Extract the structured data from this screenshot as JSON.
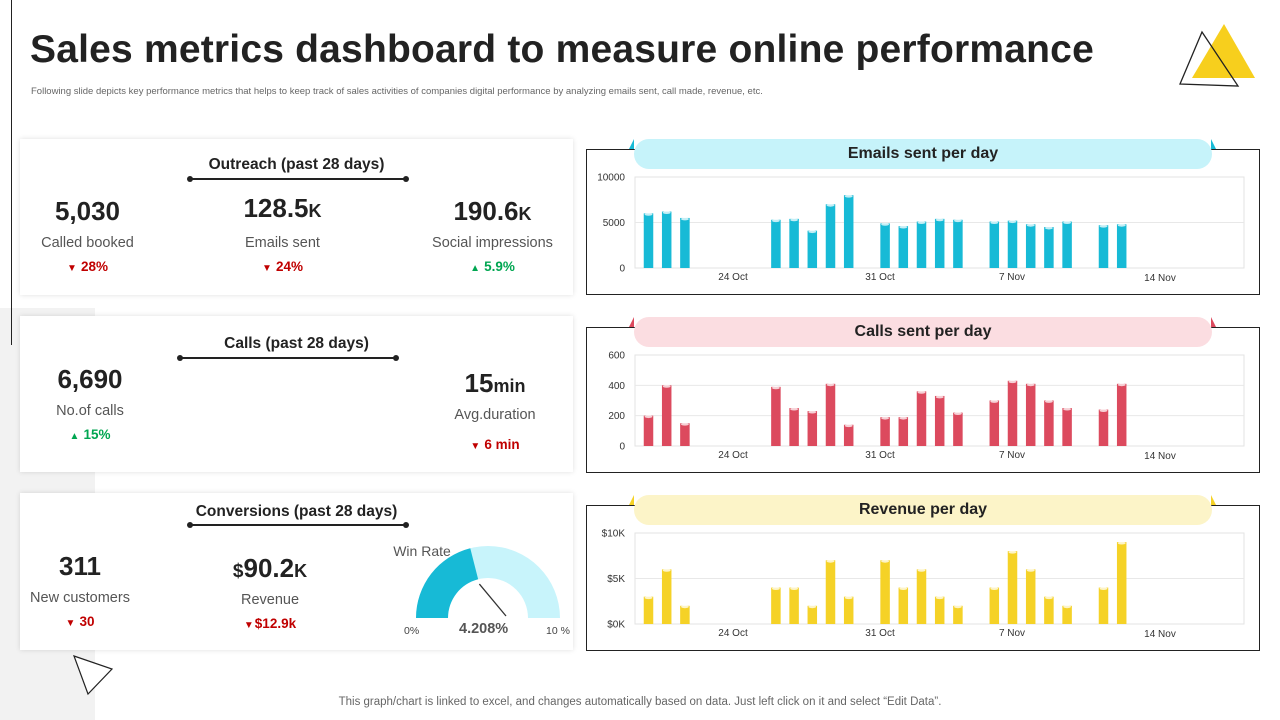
{
  "header": {
    "title": "Sales metrics dashboard to measure online performance",
    "subtitle": "Following slide depicts key performance metrics that helps to keep track of sales activities of companies digital performance by analyzing emails sent, call made, revenue, etc."
  },
  "footer": {
    "note": "This graph/chart is linked to excel, and changes automatically based on data. Just left click on it and select “Edit Data”."
  },
  "colors": {
    "emails": "#17bad6",
    "calls": "#dc4a5e",
    "revenue": "#f5d227",
    "accent_yellow": "#f7cf1d",
    "down": "#c00000",
    "up": "#00a651"
  },
  "outreach": {
    "title": "Outreach (past 28 days)",
    "called_booked": {
      "value": "5,030",
      "unit": "",
      "label": "Called booked",
      "arrow": "▼",
      "change": "28%",
      "direction": "down"
    },
    "emails_sent": {
      "value": "128.5",
      "unit": "K",
      "label": "Emails sent",
      "arrow": "▼",
      "change": "24%",
      "direction": "down"
    },
    "social_impressions": {
      "value": "190.6",
      "unit": "K",
      "label": "Social impressions",
      "arrow": "▲",
      "change": "5.9%",
      "direction": "up"
    }
  },
  "calls": {
    "title": "Calls (past 28 days)",
    "no_of_calls": {
      "value": "6,690",
      "label": "No.of calls",
      "arrow": "▲",
      "change": "15%",
      "direction": "up"
    },
    "avg_duration": {
      "value": "15",
      "unit": "min",
      "label": "Avg.duration",
      "arrow": "▼",
      "change": "6 min",
      "direction": "down"
    }
  },
  "conversions": {
    "title": "Conversions (past 28 days)",
    "new_customers": {
      "value": "311",
      "label": "New customers",
      "arrow": "▼",
      "change": "30",
      "direction": "down"
    },
    "revenue": {
      "currency": "$",
      "value": "90.2",
      "unit": "K",
      "label": "Revenue",
      "arrow": "▼",
      "change": "$12.9k",
      "direction": "down"
    },
    "win_rate": {
      "title": "Win Rate",
      "min_label": "0%",
      "max_label": "10 %",
      "value_label": "4.208%",
      "value": 4.208,
      "max": 10
    }
  },
  "chart_data": [
    {
      "type": "bar",
      "title": "Emails sent per day",
      "x_tick_labels": [
        "24 Oct",
        "31 Oct",
        "7 Nov",
        "14 Nov"
      ],
      "y_tick_labels": [
        "10000",
        "5000",
        "0"
      ],
      "ylim": [
        0,
        10000
      ],
      "series": [
        {
          "values": [
            6000,
            6200,
            5500,
            null,
            null,
            null,
            null,
            5300,
            5400,
            4100,
            7000,
            8000,
            null,
            4900,
            4600,
            5100,
            5400,
            5300,
            null,
            5100,
            5200,
            4800,
            4500,
            5100,
            null,
            4700,
            4800
          ]
        }
      ]
    },
    {
      "type": "bar",
      "title": "Calls sent per day",
      "x_tick_labels": [
        "24 Oct",
        "31 Oct",
        "7 Nov",
        "14 Nov"
      ],
      "y_tick_labels": [
        "600",
        "400",
        "200",
        "0"
      ],
      "ylim": [
        0,
        600
      ],
      "series": [
        {
          "values": [
            200,
            400,
            150,
            null,
            null,
            null,
            null,
            390,
            250,
            230,
            410,
            140,
            null,
            190,
            190,
            360,
            330,
            220,
            null,
            300,
            430,
            410,
            300,
            250,
            null,
            240,
            410
          ]
        }
      ]
    },
    {
      "type": "bar",
      "title": "Revenue per day",
      "x_tick_labels": [
        "24 Oct",
        "31 Oct",
        "7 Nov",
        "14 Nov"
      ],
      "y_tick_labels": [
        "$10K",
        "$5K",
        "$0K"
      ],
      "ylim": [
        0,
        10000
      ],
      "series": [
        {
          "values": [
            3000,
            6000,
            2000,
            null,
            null,
            null,
            null,
            4000,
            4000,
            2000,
            7000,
            3000,
            null,
            7000,
            4000,
            6000,
            3000,
            2000,
            null,
            4000,
            8000,
            6000,
            3000,
            2000,
            null,
            4000,
            9000
          ]
        }
      ]
    }
  ]
}
